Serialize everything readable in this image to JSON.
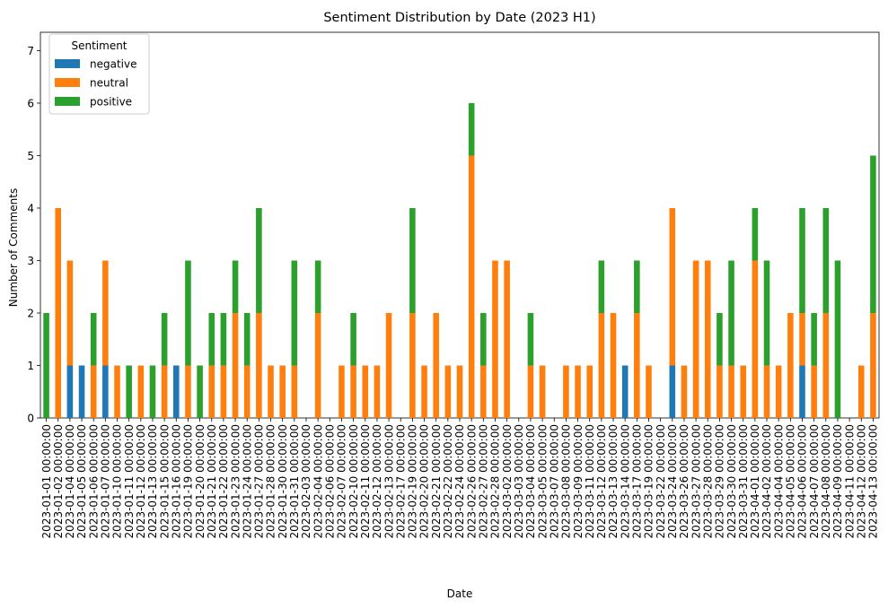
{
  "chart_data": {
    "type": "bar",
    "stacked": true,
    "title": "Sentiment Distribution by Date (2023 H1)",
    "xlabel": "Date",
    "ylabel": "Number of Comments",
    "ylim": [
      0,
      7.35
    ],
    "yticks": [
      0,
      1,
      2,
      3,
      4,
      5,
      6,
      7
    ],
    "legend": {
      "title": "Sentiment",
      "position": "top-left"
    },
    "categories": [
      "2023-01-01 00:00:00",
      "2023-01-02 00:00:00",
      "2023-01-04 00:00:00",
      "2023-01-05 00:00:00",
      "2023-01-06 00:00:00",
      "2023-01-07 00:00:00",
      "2023-01-10 00:00:00",
      "2023-01-11 00:00:00",
      "2023-01-12 00:00:00",
      "2023-01-13 00:00:00",
      "2023-01-15 00:00:00",
      "2023-01-16 00:00:00",
      "2023-01-19 00:00:00",
      "2023-01-20 00:00:00",
      "2023-01-21 00:00:00",
      "2023-01-22 00:00:00",
      "2023-01-23 00:00:00",
      "2023-01-24 00:00:00",
      "2023-01-27 00:00:00",
      "2023-01-28 00:00:00",
      "2023-01-30 00:00:00",
      "2023-01-31 00:00:00",
      "2023-02-03 00:00:00",
      "2023-02-04 00:00:00",
      "2023-02-06 00:00:00",
      "2023-02-07 00:00:00",
      "2023-02-10 00:00:00",
      "2023-02-11 00:00:00",
      "2023-02-12 00:00:00",
      "2023-02-13 00:00:00",
      "2023-02-17 00:00:00",
      "2023-02-19 00:00:00",
      "2023-02-20 00:00:00",
      "2023-02-21 00:00:00",
      "2023-02-22 00:00:00",
      "2023-02-24 00:00:00",
      "2023-02-26 00:00:00",
      "2023-02-27 00:00:00",
      "2023-02-28 00:00:00",
      "2023-03-02 00:00:00",
      "2023-03-03 00:00:00",
      "2023-03-04 00:00:00",
      "2023-03-05 00:00:00",
      "2023-03-07 00:00:00",
      "2023-03-08 00:00:00",
      "2023-03-09 00:00:00",
      "2023-03-11 00:00:00",
      "2023-03-12 00:00:00",
      "2023-03-13 00:00:00",
      "2023-03-14 00:00:00",
      "2023-03-17 00:00:00",
      "2023-03-19 00:00:00",
      "2023-03-22 00:00:00",
      "2023-03-24 00:00:00",
      "2023-03-26 00:00:00",
      "2023-03-27 00:00:00",
      "2023-03-28 00:00:00",
      "2023-03-29 00:00:00",
      "2023-03-30 00:00:00",
      "2023-03-31 00:00:00",
      "2023-04-01 00:00:00",
      "2023-04-02 00:00:00",
      "2023-04-04 00:00:00",
      "2023-04-05 00:00:00",
      "2023-04-06 00:00:00",
      "2023-04-07 00:00:00",
      "2023-04-08 00:00:00",
      "2023-04-09 00:00:00",
      "2023-04-11 00:00:00",
      "2023-04-12 00:00:00",
      "2023-04-13 00:00:00"
    ],
    "series": [
      {
        "name": "negative",
        "color": "#1f77b4",
        "values": [
          0,
          0,
          1,
          1,
          0,
          1,
          0,
          0,
          0,
          0,
          0,
          1,
          0,
          0,
          0,
          0,
          0,
          0,
          0,
          0,
          0,
          0,
          0,
          0,
          0,
          0,
          0,
          0,
          0,
          0,
          0,
          0,
          0,
          0,
          0,
          0,
          0,
          0,
          0,
          0,
          0,
          0,
          0,
          0,
          0,
          0,
          0,
          0,
          0,
          1,
          0,
          0,
          0,
          1,
          0,
          0,
          0,
          0,
          0,
          0,
          0,
          0,
          0,
          0,
          1,
          0,
          0,
          0,
          0,
          0,
          0
        ]
      },
      {
        "name": "neutral",
        "color": "#ff7f0e",
        "values": [
          0,
          4,
          2,
          0,
          1,
          2,
          1,
          0,
          1,
          0,
          1,
          0,
          1,
          0,
          1,
          1,
          2,
          1,
          2,
          1,
          1,
          1,
          0,
          2,
          0,
          1,
          1,
          1,
          1,
          2,
          0,
          2,
          1,
          2,
          1,
          1,
          5,
          1,
          3,
          3,
          0,
          1,
          1,
          0,
          1,
          1,
          1,
          2,
          2,
          0,
          2,
          1,
          0,
          3,
          1,
          3,
          3,
          1,
          1,
          1,
          3,
          1,
          1,
          2,
          1,
          1,
          2,
          0,
          0,
          1,
          2
        ]
      },
      {
        "name": "positive",
        "color": "#2ca02c",
        "values": [
          2,
          0,
          0,
          0,
          1,
          0,
          0,
          1,
          0,
          1,
          1,
          0,
          2,
          1,
          1,
          1,
          1,
          1,
          2,
          0,
          0,
          2,
          0,
          1,
          0,
          0,
          1,
          0,
          0,
          0,
          0,
          2,
          0,
          0,
          0,
          0,
          1,
          1,
          0,
          0,
          0,
          1,
          0,
          0,
          0,
          0,
          0,
          1,
          0,
          0,
          1,
          0,
          0,
          0,
          0,
          0,
          0,
          1,
          2,
          0,
          1,
          2,
          0,
          0,
          2,
          1,
          2,
          3,
          0,
          0,
          3
        ]
      }
    ]
  }
}
